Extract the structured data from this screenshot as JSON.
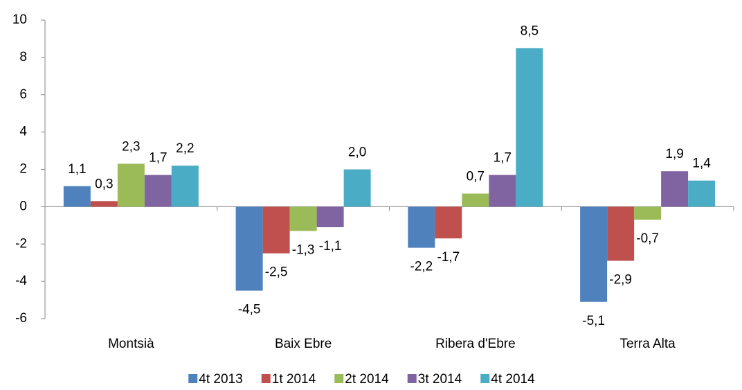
{
  "chart_data": {
    "type": "bar",
    "categories": [
      "Montsià",
      "Baix Ebre",
      "Ribera d'Ebre",
      "Terra Alta"
    ],
    "series": [
      {
        "name": "4t 2013",
        "color": "#4f81bd",
        "values": [
          1.1,
          -4.5,
          -2.2,
          -5.1
        ],
        "value_labels": [
          "1,1",
          "-4,5",
          "-2,2",
          "-5,1"
        ]
      },
      {
        "name": "1t 2014",
        "color": "#c0504d",
        "values": [
          0.3,
          -2.5,
          -1.7,
          -2.9
        ],
        "value_labels": [
          "0,3",
          "-2,5",
          "-1,7",
          "-2,9"
        ]
      },
      {
        "name": "2t 2014",
        "color": "#9bbb59",
        "values": [
          2.3,
          -1.3,
          0.7,
          -0.7
        ],
        "value_labels": [
          "2,3",
          "-1,3",
          "0,7",
          "-0,7"
        ]
      },
      {
        "name": "3t 2014",
        "color": "#8064a2",
        "values": [
          1.7,
          -1.1,
          1.7,
          1.9
        ],
        "value_labels": [
          "1,7",
          "-1,1",
          "1,7",
          "1,9"
        ]
      },
      {
        "name": "4t 2014",
        "color": "#4bacc6",
        "values": [
          2.2,
          2.0,
          8.5,
          1.4
        ],
        "value_labels": [
          "2,2",
          "2,0",
          "8,5",
          "1,4"
        ]
      }
    ],
    "ylim": [
      -6,
      10
    ],
    "yticks": [
      -6,
      -4,
      -2,
      0,
      2,
      4,
      6,
      8,
      10
    ],
    "grid": false,
    "legend": "bottom"
  }
}
